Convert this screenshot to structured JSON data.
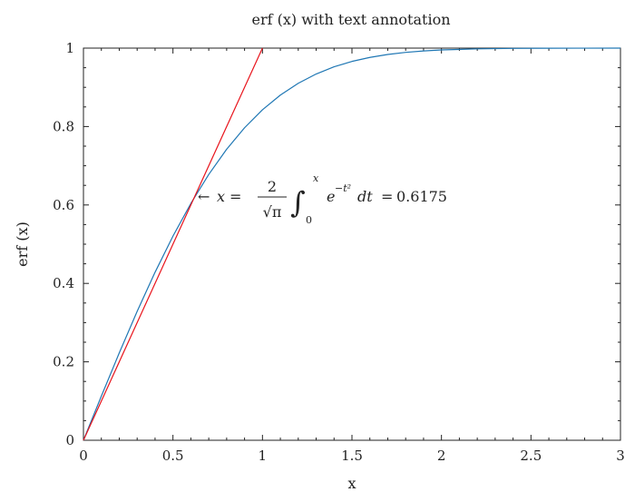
{
  "chart_data": {
    "type": "line",
    "title": "erf (x) with text annotation",
    "xlabel": "x",
    "ylabel": "erf (x)",
    "xlim": [
      0,
      3
    ],
    "ylim": [
      0,
      1
    ],
    "grid": false,
    "xticks": [
      0,
      0.5,
      1,
      1.5,
      2,
      2.5,
      3
    ],
    "xtick_labels": [
      "0",
      "0.5",
      "1",
      "1.5",
      "2",
      "2.5",
      "3"
    ],
    "yticks": [
      0,
      0.2,
      0.4,
      0.6,
      0.8,
      1
    ],
    "ytick_labels": [
      "0",
      "0.2",
      "0.4",
      "0.6",
      "0.8",
      "1"
    ],
    "series": [
      {
        "color": "#1f77b4",
        "x": [
          0,
          0.1,
          0.2,
          0.3,
          0.4,
          0.5,
          0.6,
          0.7,
          0.8,
          0.9,
          1.0,
          1.1,
          1.2,
          1.3,
          1.4,
          1.5,
          1.6,
          1.7,
          1.8,
          1.9,
          2.0,
          2.2,
          2.4,
          2.6,
          2.8,
          3.0
        ],
        "y": [
          0,
          0.1125,
          0.2227,
          0.3286,
          0.4284,
          0.5205,
          0.6039,
          0.6778,
          0.7421,
          0.7969,
          0.8427,
          0.8802,
          0.9103,
          0.934,
          0.9523,
          0.9661,
          0.9763,
          0.9838,
          0.9891,
          0.9928,
          0.9953,
          0.9981,
          0.9993,
          0.9998,
          0.9999,
          1.0
        ]
      },
      {
        "color": "#e8141c",
        "x": [
          0,
          1.0
        ],
        "y": [
          0,
          1.0
        ]
      }
    ],
    "annotation": {
      "x": 0.6175,
      "y": 0.6175,
      "arrow": "←",
      "lhs": "x",
      "equals": "=",
      "numerator": "2",
      "denominator": "√π",
      "integral": "∫",
      "lower": "0",
      "upper": "x",
      "base": "e",
      "exponent": "−t²",
      "differential": "dt",
      "equals2": "=",
      "value": "0.6175"
    }
  }
}
